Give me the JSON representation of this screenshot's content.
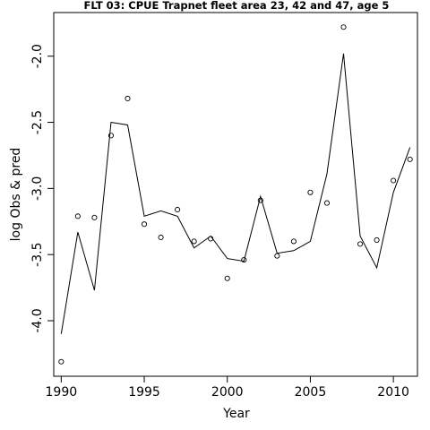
{
  "chart_data": {
    "type": "line",
    "title": "FLT 03: CPUE Trapnet fleet area 23, 42 and 47, age 5",
    "xlabel": "Year",
    "ylabel": "log Obs & pred",
    "xlim": [
      1989.55,
      2011.45
    ],
    "ylim": [
      -4.42,
      -1.67
    ],
    "x_ticks": [
      1990,
      1995,
      2000,
      2005,
      2010
    ],
    "x_tick_labels": [
      "1990",
      "1995",
      "2000",
      "2005",
      "2010"
    ],
    "y_ticks": [
      -4.0,
      -3.5,
      -3.0,
      -2.5,
      -2.0
    ],
    "y_tick_labels": [
      "-4.0",
      "-3.5",
      "-3.0",
      "-2.5",
      "-2.0"
    ],
    "grid": false,
    "x": [
      1990,
      1991,
      1992,
      1993,
      1994,
      1995,
      1996,
      1997,
      1998,
      1999,
      2000,
      2001,
      2002,
      2003,
      2004,
      2005,
      2006,
      2007,
      2008,
      2009,
      2010,
      2011
    ],
    "series": [
      {
        "role": "observed",
        "style": "points",
        "values": [
          -4.31,
          -3.21,
          -3.22,
          -2.6,
          -2.32,
          -3.27,
          -3.37,
          -3.16,
          -3.4,
          -3.38,
          -3.68,
          -3.54,
          -3.09,
          -3.51,
          -3.4,
          -3.03,
          -3.11,
          -1.78,
          -3.42,
          -3.39,
          -2.94,
          -2.78
        ]
      },
      {
        "role": "predicted",
        "style": "line",
        "values": [
          -4.1,
          -3.33,
          -3.77,
          -2.5,
          -2.52,
          -3.21,
          -3.17,
          -3.21,
          -3.45,
          -3.36,
          -3.53,
          -3.55,
          -3.06,
          -3.49,
          -3.47,
          -3.4,
          -2.89,
          -1.98,
          -3.36,
          -3.6,
          -3.03,
          -2.69
        ]
      }
    ]
  }
}
